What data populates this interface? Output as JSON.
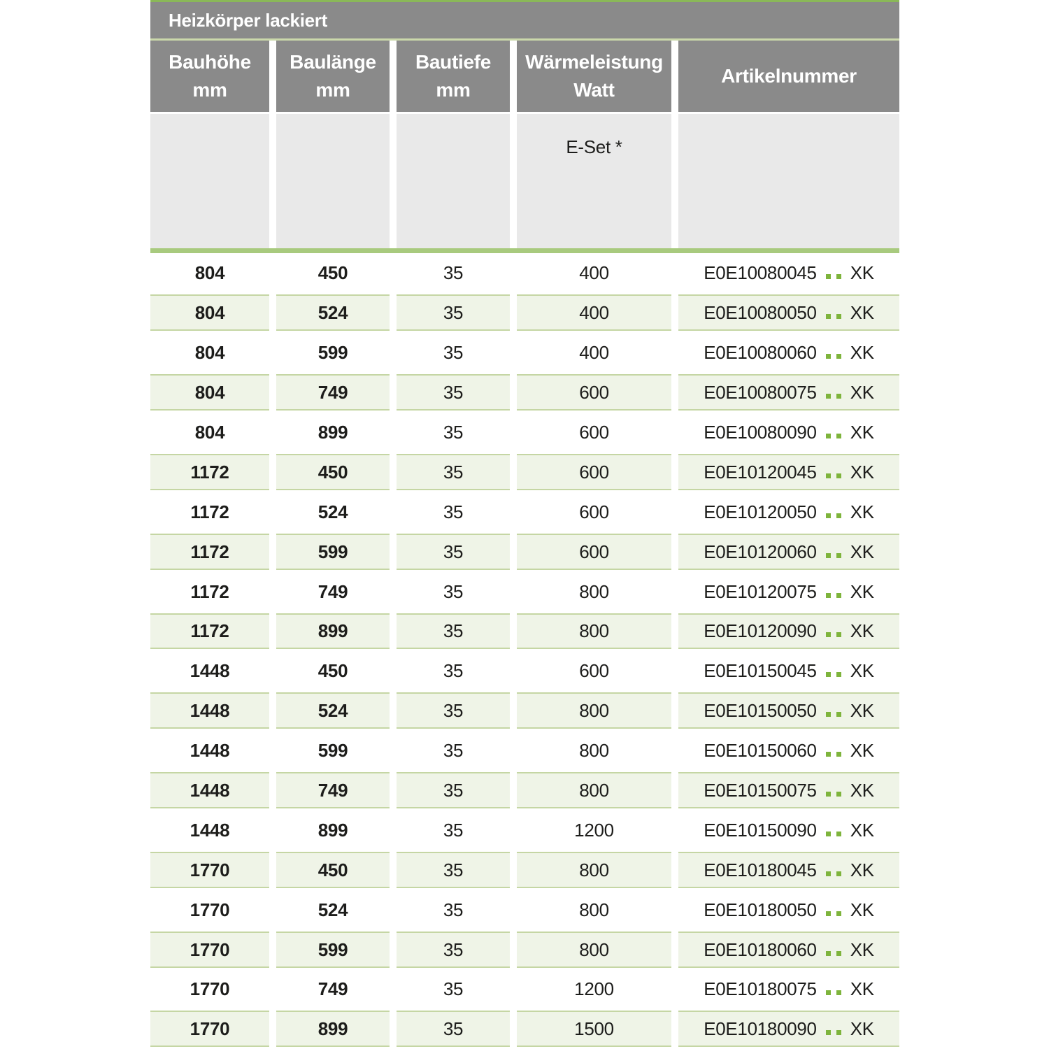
{
  "table": {
    "title": "Heizkörper lackiert",
    "columns": [
      {
        "label": "Bauhöhe",
        "unit": "mm"
      },
      {
        "label": "Baulänge",
        "unit": "mm"
      },
      {
        "label": "Bautiefe",
        "unit": "mm"
      },
      {
        "label": "Wärmeleistung",
        "unit": "Watt"
      },
      {
        "label": "Artikelnummer",
        "unit": ""
      }
    ],
    "eset_label": "E-Set *",
    "rows": [
      {
        "bauhoehe": "804",
        "baulaenge": "450",
        "bautiefe": "35",
        "watt": "400",
        "artikel_code": "E0E10080045",
        "artikel_suffix": "XK"
      },
      {
        "bauhoehe": "804",
        "baulaenge": "524",
        "bautiefe": "35",
        "watt": "400",
        "artikel_code": "E0E10080050",
        "artikel_suffix": "XK"
      },
      {
        "bauhoehe": "804",
        "baulaenge": "599",
        "bautiefe": "35",
        "watt": "400",
        "artikel_code": "E0E10080060",
        "artikel_suffix": "XK"
      },
      {
        "bauhoehe": "804",
        "baulaenge": "749",
        "bautiefe": "35",
        "watt": "600",
        "artikel_code": "E0E10080075",
        "artikel_suffix": "XK"
      },
      {
        "bauhoehe": "804",
        "baulaenge": "899",
        "bautiefe": "35",
        "watt": "600",
        "artikel_code": "E0E10080090",
        "artikel_suffix": "XK"
      },
      {
        "bauhoehe": "1172",
        "baulaenge": "450",
        "bautiefe": "35",
        "watt": "600",
        "artikel_code": "E0E10120045",
        "artikel_suffix": "XK"
      },
      {
        "bauhoehe": "1172",
        "baulaenge": "524",
        "bautiefe": "35",
        "watt": "600",
        "artikel_code": "E0E10120050",
        "artikel_suffix": "XK"
      },
      {
        "bauhoehe": "1172",
        "baulaenge": "599",
        "bautiefe": "35",
        "watt": "600",
        "artikel_code": "E0E10120060",
        "artikel_suffix": "XK"
      },
      {
        "bauhoehe": "1172",
        "baulaenge": "749",
        "bautiefe": "35",
        "watt": "800",
        "artikel_code": "E0E10120075",
        "artikel_suffix": "XK"
      },
      {
        "bauhoehe": "1172",
        "baulaenge": "899",
        "bautiefe": "35",
        "watt": "800",
        "artikel_code": "E0E10120090",
        "artikel_suffix": "XK"
      },
      {
        "bauhoehe": "1448",
        "baulaenge": "450",
        "bautiefe": "35",
        "watt": "600",
        "artikel_code": "E0E10150045",
        "artikel_suffix": "XK"
      },
      {
        "bauhoehe": "1448",
        "baulaenge": "524",
        "bautiefe": "35",
        "watt": "800",
        "artikel_code": "E0E10150050",
        "artikel_suffix": "XK"
      },
      {
        "bauhoehe": "1448",
        "baulaenge": "599",
        "bautiefe": "35",
        "watt": "800",
        "artikel_code": "E0E10150060",
        "artikel_suffix": "XK"
      },
      {
        "bauhoehe": "1448",
        "baulaenge": "749",
        "bautiefe": "35",
        "watt": "800",
        "artikel_code": "E0E10150075",
        "artikel_suffix": "XK"
      },
      {
        "bauhoehe": "1448",
        "baulaenge": "899",
        "bautiefe": "35",
        "watt": "1200",
        "artikel_code": "E0E10150090",
        "artikel_suffix": "XK"
      },
      {
        "bauhoehe": "1770",
        "baulaenge": "450",
        "bautiefe": "35",
        "watt": "800",
        "artikel_code": "E0E10180045",
        "artikel_suffix": "XK"
      },
      {
        "bauhoehe": "1770",
        "baulaenge": "524",
        "bautiefe": "35",
        "watt": "800",
        "artikel_code": "E0E10180050",
        "artikel_suffix": "XK"
      },
      {
        "bauhoehe": "1770",
        "baulaenge": "599",
        "bautiefe": "35",
        "watt": "800",
        "artikel_code": "E0E10180060",
        "artikel_suffix": "XK"
      },
      {
        "bauhoehe": "1770",
        "baulaenge": "749",
        "bautiefe": "35",
        "watt": "1200",
        "artikel_code": "E0E10180075",
        "artikel_suffix": "XK"
      },
      {
        "bauhoehe": "1770",
        "baulaenge": "899",
        "bautiefe": "35",
        "watt": "1500",
        "artikel_code": "E0E10180090",
        "artikel_suffix": "XK"
      }
    ]
  },
  "colors": {
    "header_gray": "#8a8a8a",
    "subheader_gray": "#e9e9e9",
    "top_green": "#8ab858",
    "pale_green_line": "#cbd8ab",
    "bar_green": "#a8ca7e",
    "row_green_bg": "#eff4e7",
    "row_green_border": "#c5d6a4",
    "dot_green": "#7eb43c",
    "text_dark": "#1d1d1b"
  }
}
